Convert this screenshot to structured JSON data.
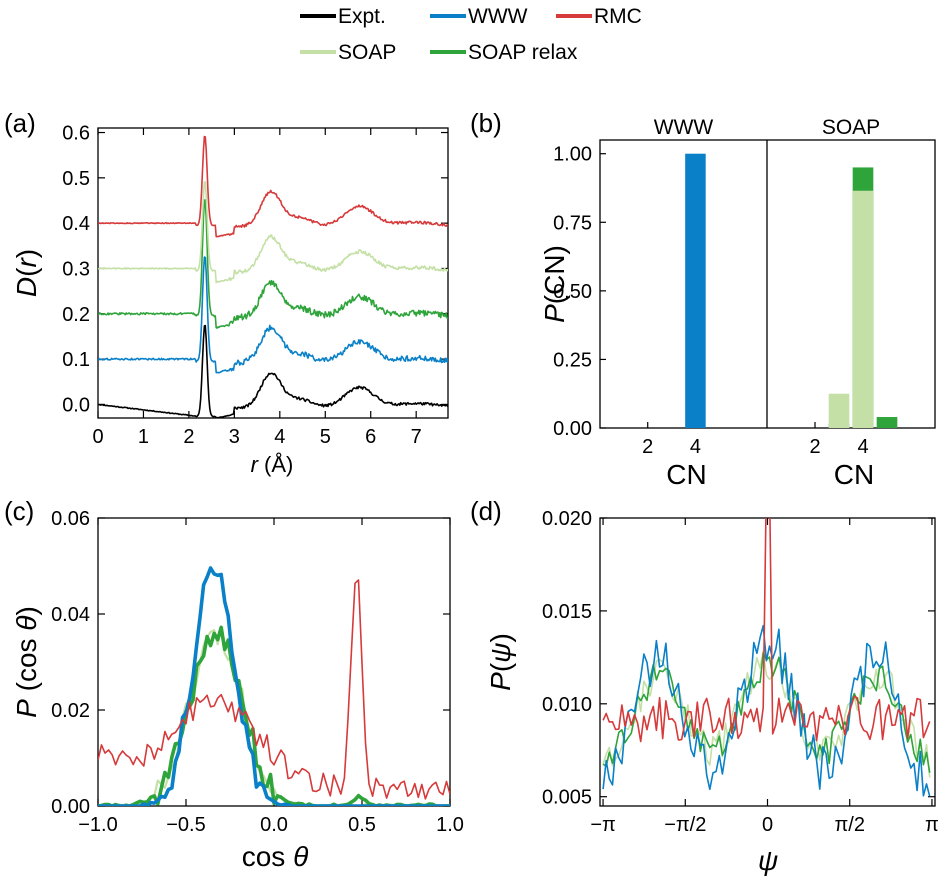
{
  "colors": {
    "Expt.": "#000000",
    "WWW": "#0a80c8",
    "RMC": "#d63a3a",
    "SOAP": "#c4e0a6",
    "SOAP relax": "#2ea43a"
  },
  "legend": {
    "placement": "top-center",
    "entries": [
      "Expt.",
      "WWW",
      "RMC",
      "SOAP",
      "SOAP relax"
    ]
  },
  "chart_data": [
    {
      "id": "a",
      "panel_label": "(a)",
      "type": "line",
      "xlabel": "r (Å)",
      "xlabel_parts": {
        "var": "r",
        "unit": " (Å)"
      },
      "ylabel": "D(r)",
      "ylabel_parts": {
        "var": "D",
        "pre": "(",
        "var2": "r",
        "post": ")"
      },
      "xlim": [
        0,
        7.7
      ],
      "ylim": [
        -0.03,
        0.61
      ],
      "xticks": [
        0,
        1,
        2,
        3,
        4,
        5,
        6,
        7
      ],
      "xtick_labels": [
        "0",
        "1",
        "2",
        "3",
        "4",
        "5",
        "6",
        "7"
      ],
      "yticks": [
        0.0,
        0.1,
        0.2,
        0.3,
        0.4,
        0.5,
        0.6
      ],
      "ytick_labels": [
        "0.0",
        "0.1",
        "0.2",
        "0.3",
        "0.4",
        "0.5",
        "0.6"
      ],
      "grid": false,
      "series": [
        {
          "name": "Expt.",
          "offset": 0.0,
          "peak": 0.205,
          "noise": 0.003
        },
        {
          "name": "WWW",
          "offset": 0.1,
          "peak": 0.235,
          "noise": 0.006
        },
        {
          "name": "SOAP relax",
          "offset": 0.2,
          "peak": 0.26,
          "noise": 0.007
        },
        {
          "name": "SOAP",
          "offset": 0.3,
          "peak": 0.2,
          "noise": 0.004
        },
        {
          "name": "RMC",
          "offset": 0.4,
          "peak": 0.2,
          "noise": 0.003
        }
      ]
    },
    {
      "id": "b",
      "panel_label": "(b)",
      "type": "bar",
      "xlabel": "CN",
      "ylabel": "P(CN)",
      "ylabel_parts": {
        "var": "P",
        "post": "(CN)"
      },
      "ylim": [
        0,
        1.05
      ],
      "yticks": [
        0.0,
        0.25,
        0.5,
        0.75,
        1.0
      ],
      "ytick_labels": [
        "0.00",
        "0.25",
        "0.50",
        "0.75",
        "1.00"
      ],
      "grid": false,
      "facets": [
        {
          "title": "WWW",
          "xticks": [
            2,
            4
          ],
          "bars": [
            {
              "series": "WWW",
              "categories": [
                4
              ],
              "values": [
                1.0
              ]
            }
          ]
        },
        {
          "title": "SOAP",
          "xticks": [
            2,
            4
          ],
          "bars": [
            {
              "series": "SOAP",
              "categories": [
                3,
                4
              ],
              "values": [
                0.125,
                0.865
              ]
            },
            {
              "series": "SOAP relax",
              "categories": [
                3,
                4,
                5
              ],
              "values": [
                0.015,
                0.95,
                0.04
              ]
            }
          ]
        }
      ]
    },
    {
      "id": "c",
      "panel_label": "(c)",
      "type": "line",
      "xlabel": "cos θ",
      "xlabel_parts": {
        "var": "cos ",
        "var2": "θ"
      },
      "ylabel": "P (cos θ)",
      "ylabel_parts": {
        "var": "P",
        "mid": " (cos ",
        "var2": "θ",
        "post": ")"
      },
      "xlim": [
        -1,
        1
      ],
      "ylim": [
        0,
        0.06
      ],
      "xticks": [
        -1,
        -0.5,
        0,
        0.5,
        1
      ],
      "xtick_labels": [
        "−1.0",
        "−0.5",
        "0.0",
        "0.5",
        "1.0"
      ],
      "yticks": [
        0,
        0.02,
        0.04,
        0.06
      ],
      "ytick_labels": [
        "0.00",
        "0.02",
        "0.04",
        "0.06"
      ],
      "grid": false,
      "series": [
        {
          "name": "SOAP",
          "peaks": [
            [
              -0.33,
              0.036,
              0.15
            ]
          ]
        },
        {
          "name": "SOAP relax",
          "peaks": [
            [
              -0.33,
              0.036,
              0.15
            ],
            [
              0.48,
              0.002,
              0.03
            ]
          ]
        },
        {
          "name": "WWW",
          "peaks": [
            [
              -0.34,
              0.049,
              0.12
            ]
          ]
        },
        {
          "name": "RMC",
          "peaks": [
            [
              -0.35,
              0.018,
              0.25
            ],
            [
              0.47,
              0.045,
              0.03
            ]
          ],
          "baseline": 0.004
        }
      ]
    },
    {
      "id": "d",
      "panel_label": "(d)",
      "type": "line",
      "xlabel": "ψ",
      "ylabel": "P(ψ)",
      "ylabel_parts": {
        "var": "P",
        "pre": "(",
        "var2": "ψ",
        "post": ")"
      },
      "xlim": [
        -3.2,
        3.2
      ],
      "ylim": [
        0.0045,
        0.02
      ],
      "xticks": [
        -3.1416,
        -1.5708,
        0,
        1.5708,
        3.1416
      ],
      "xtick_labels": [
        "−π",
        "−π/2",
        "0",
        "π/2",
        "π"
      ],
      "yticks": [
        0.005,
        0.01,
        0.015,
        0.02
      ],
      "ytick_labels": [
        "0.005",
        "0.010",
        "0.015",
        "0.020"
      ],
      "grid": false,
      "series": [
        {
          "name": "SOAP"
        },
        {
          "name": "SOAP relax"
        },
        {
          "name": "WWW"
        },
        {
          "name": "RMC"
        }
      ]
    }
  ]
}
